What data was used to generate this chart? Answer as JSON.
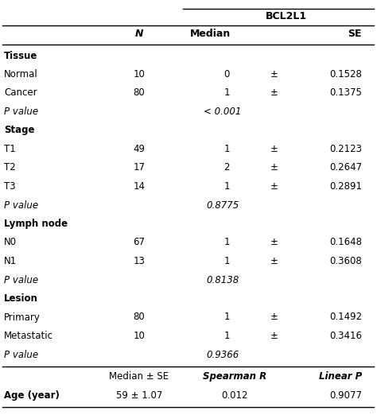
{
  "title": "BCL2L1",
  "col_header_N": "N",
  "col_header_median": "Median",
  "col_header_se": "SE",
  "rows": [
    {
      "label": "Tissue",
      "n": "",
      "median": "",
      "pm": "",
      "se": "",
      "italic": false,
      "bold_label": true,
      "pvalue_row": false
    },
    {
      "label": "Normal",
      "n": "10",
      "median": "0",
      "pm": "±",
      "se": "0.1528",
      "italic": false,
      "bold_label": false,
      "pvalue_row": false
    },
    {
      "label": "Cancer",
      "n": "80",
      "median": "1",
      "pm": "±",
      "se": "0.1375",
      "italic": false,
      "bold_label": false,
      "pvalue_row": false
    },
    {
      "label": "P value",
      "n": "",
      "median": "< 0.001",
      "pm": "",
      "se": "",
      "italic": true,
      "bold_label": false,
      "pvalue_row": true
    },
    {
      "label": "Stage",
      "n": "",
      "median": "",
      "pm": "",
      "se": "",
      "italic": false,
      "bold_label": true,
      "pvalue_row": false
    },
    {
      "label": "T1",
      "n": "49",
      "median": "1",
      "pm": "±",
      "se": "0.2123",
      "italic": false,
      "bold_label": false,
      "pvalue_row": false
    },
    {
      "label": "T2",
      "n": "17",
      "median": "2",
      "pm": "±",
      "se": "0.2647",
      "italic": false,
      "bold_label": false,
      "pvalue_row": false
    },
    {
      "label": "T3",
      "n": "14",
      "median": "1",
      "pm": "±",
      "se": "0.2891",
      "italic": false,
      "bold_label": false,
      "pvalue_row": false
    },
    {
      "label": "P value",
      "n": "",
      "median": "0.8775",
      "pm": "",
      "se": "",
      "italic": true,
      "bold_label": false,
      "pvalue_row": true
    },
    {
      "label": "Lymph node",
      "n": "",
      "median": "",
      "pm": "",
      "se": "",
      "italic": false,
      "bold_label": true,
      "pvalue_row": false
    },
    {
      "label": "N0",
      "n": "67",
      "median": "1",
      "pm": "±",
      "se": "0.1648",
      "italic": false,
      "bold_label": false,
      "pvalue_row": false
    },
    {
      "label": "N1",
      "n": "13",
      "median": "1",
      "pm": "±",
      "se": "0.3608",
      "italic": false,
      "bold_label": false,
      "pvalue_row": false
    },
    {
      "label": "P value",
      "n": "",
      "median": "0.8138",
      "pm": "",
      "se": "",
      "italic": true,
      "bold_label": false,
      "pvalue_row": true
    },
    {
      "label": "Lesion",
      "n": "",
      "median": "",
      "pm": "",
      "se": "",
      "italic": false,
      "bold_label": true,
      "pvalue_row": false
    },
    {
      "label": "Primary",
      "n": "80",
      "median": "1",
      "pm": "±",
      "se": "0.1492",
      "italic": false,
      "bold_label": false,
      "pvalue_row": false
    },
    {
      "label": "Metastatic",
      "n": "10",
      "median": "1",
      "pm": "±",
      "se": "0.3416",
      "italic": false,
      "bold_label": false,
      "pvalue_row": false
    },
    {
      "label": "P value",
      "n": "",
      "median": "0.9366",
      "pm": "",
      "se": "",
      "italic": true,
      "bold_label": false,
      "pvalue_row": true
    }
  ],
  "footer_header": {
    "col1": "Median ± SE",
    "col2": "Spearman R",
    "col3": "Linear P"
  },
  "footer_row": {
    "label": "Age (year)",
    "col1": "59 ± 1.07",
    "col2": "0.012",
    "col3": "0.9077"
  },
  "bg_color": "#ffffff",
  "text_color": "#000000",
  "font_size": 8.5,
  "header_font_size": 9.0
}
